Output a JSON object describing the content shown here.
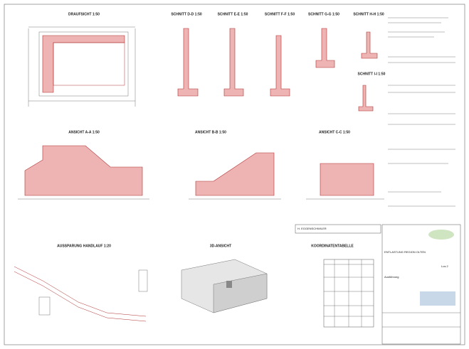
{
  "views": {
    "draufsicht": "DRAUFSICHT 1:50",
    "schnitt_dd": "SCHNITT D-D 1:50",
    "schnitt_ee": "SCHNITT E-E 1:50",
    "schnitt_ff": "SCHNITT F-F 1:50",
    "schnitt_gg": "SCHNITT G-G 1:50",
    "schnitt_hh": "SCHNITT H-H 1:50",
    "schnitt_ii": "SCHNITT I-I 1:50",
    "ansicht_aa": "ANSICHT A-A 1:50",
    "ansicht_bb": "ANSICHT B-B 1:50",
    "ansicht_cc": "ANSICHT C-C 1:50",
    "aussparung": "AUSSPARUNG HANDLAUF 1:20",
    "ansicht_3d": "3D-ANSICHT",
    "koordinaten": "KOORDINATENTABELLE"
  },
  "title_block": {
    "engineer": "H. EGGENSCHWILER",
    "project": "ENTLASTUNG REGION OLTEN",
    "lot": "Los 2",
    "phase": "Ausführung"
  }
}
